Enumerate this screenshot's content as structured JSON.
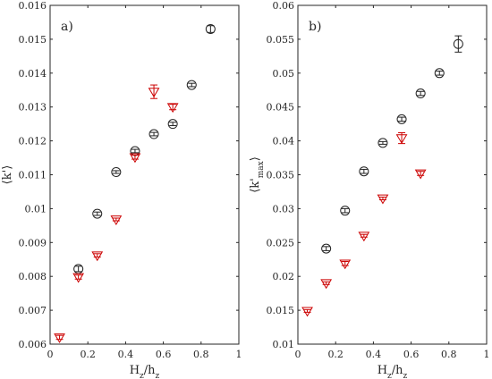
{
  "chart_data": [
    {
      "type": "scatter",
      "panel_label": "a)",
      "xlabel": "H_z/h_z",
      "ylabel": "⟨k'⟩",
      "xlim": [
        0,
        1
      ],
      "ylim": [
        0.006,
        0.016
      ],
      "xticks": [
        0,
        0.2,
        0.4,
        0.6,
        0.8,
        1
      ],
      "xtick_labels": [
        "0",
        "0.2",
        "0.4",
        "0.6",
        "0.8",
        "1"
      ],
      "yticks": [
        0.006,
        0.007,
        0.008,
        0.009,
        0.01,
        0.011,
        0.012,
        0.013,
        0.014,
        0.015,
        0.016
      ],
      "ytick_labels": [
        "0.006",
        "0.007",
        "0.008",
        "0.009",
        "0.01",
        "0.011",
        "0.012",
        "0.013",
        "0.014",
        "0.015",
        "0.016"
      ],
      "grid": false,
      "series": [
        {
          "marker": "circle",
          "color": "#222222",
          "x": [
            0.15,
            0.25,
            0.35,
            0.45,
            0.55,
            0.65,
            0.75,
            0.85
          ],
          "y": [
            0.00822,
            0.00985,
            0.01108,
            0.0117,
            0.0122,
            0.0125,
            0.01365,
            0.0153
          ],
          "err": [
            8e-05,
            5e-05,
            4e-05,
            5e-05,
            5e-05,
            5e-05,
            5e-05,
            0.0001
          ]
        },
        {
          "marker": "triangle-down",
          "color": "#cc0000",
          "x": [
            0.05,
            0.15,
            0.25,
            0.35,
            0.45,
            0.55,
            0.65
          ],
          "y": [
            0.0062,
            0.00798,
            0.00862,
            0.00968,
            0.01152,
            0.01345,
            0.013
          ],
          "err": [
            6e-05,
            6e-05,
            5e-05,
            4e-05,
            6e-05,
            0.0002,
            8e-05
          ]
        }
      ]
    },
    {
      "type": "scatter",
      "panel_label": "b)",
      "xlabel": "H_z/h_z",
      "ylabel": "⟨k'_max⟩",
      "xlim": [
        0,
        1
      ],
      "ylim": [
        0.01,
        0.06
      ],
      "xticks": [
        0,
        0.2,
        0.4,
        0.6,
        0.8,
        1
      ],
      "xtick_labels": [
        "0",
        "0.2",
        "0.4",
        "0.6",
        "0.8",
        "1"
      ],
      "yticks": [
        0.01,
        0.015,
        0.02,
        0.025,
        0.03,
        0.035,
        0.04,
        0.045,
        0.05,
        0.055,
        0.06
      ],
      "ytick_labels": [
        "0.01",
        "0.015",
        "0.02",
        "0.025",
        "0.03",
        "0.035",
        "0.04",
        "0.045",
        "0.05",
        "0.055",
        "0.06"
      ],
      "grid": false,
      "series": [
        {
          "marker": "circle",
          "color": "#222222",
          "x": [
            0.15,
            0.25,
            0.35,
            0.45,
            0.55,
            0.65,
            0.75,
            0.85
          ],
          "y": [
            0.0241,
            0.0297,
            0.0355,
            0.0397,
            0.0432,
            0.047,
            0.05,
            0.0543
          ],
          "err": [
            0.0003,
            0.0003,
            0.0003,
            0.0002,
            0.0003,
            0.0003,
            0.0003,
            0.0012
          ]
        },
        {
          "marker": "triangle-down",
          "color": "#cc0000",
          "x": [
            0.05,
            0.15,
            0.25,
            0.35,
            0.45,
            0.55,
            0.65
          ],
          "y": [
            0.0149,
            0.019,
            0.0219,
            0.026,
            0.0315,
            0.0404,
            0.0352
          ],
          "err": [
            0.0002,
            0.0002,
            0.0003,
            0.0002,
            0.0002,
            0.0008,
            0.0003
          ]
        }
      ]
    }
  ]
}
